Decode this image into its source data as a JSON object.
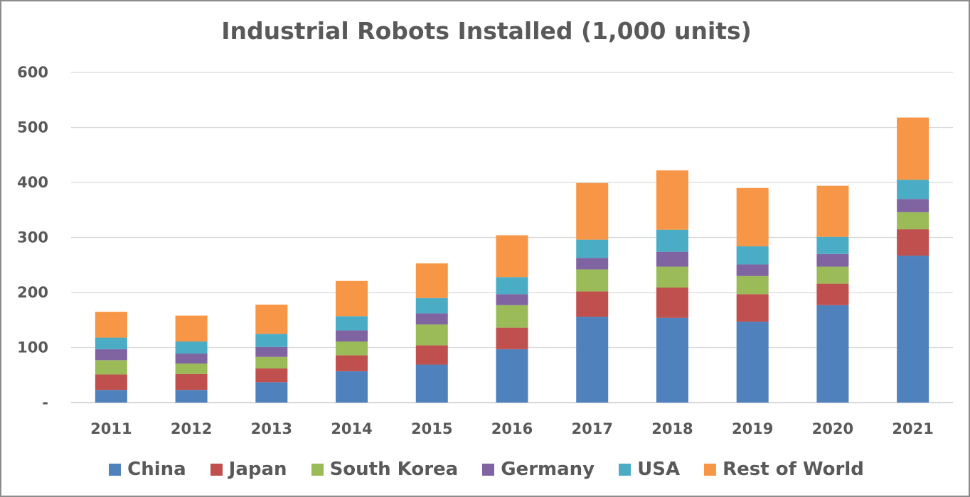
{
  "chart_data": {
    "type": "bar",
    "stacked": true,
    "title": "Industrial Robots Installed (1,000 units)",
    "xlabel": "",
    "ylabel": "",
    "ylim": [
      0,
      600
    ],
    "y_ticks": [
      0,
      100,
      200,
      300,
      400,
      500,
      600
    ],
    "y_tick_labels": [
      "-",
      "100",
      "200",
      "300",
      "400",
      "500",
      "600"
    ],
    "grid": true,
    "legend_position": "bottom",
    "categories": [
      "2011",
      "2012",
      "2013",
      "2014",
      "2015",
      "2016",
      "2017",
      "2018",
      "2019",
      "2020",
      "2021"
    ],
    "series": [
      {
        "name": "China",
        "color": "#4f81bd",
        "values": [
          23,
          23,
          37,
          57,
          69,
          97,
          156,
          154,
          147,
          177,
          267
        ]
      },
      {
        "name": "Japan",
        "color": "#c0504d",
        "values": [
          28,
          29,
          25,
          29,
          35,
          39,
          46,
          55,
          50,
          39,
          48
        ]
      },
      {
        "name": "South Korea",
        "color": "#9bbb59",
        "values": [
          26,
          19,
          21,
          25,
          38,
          41,
          40,
          38,
          33,
          31,
          31
        ]
      },
      {
        "name": "Germany",
        "color": "#8064a2",
        "values": [
          20,
          18,
          18,
          20,
          20,
          20,
          21,
          27,
          21,
          23,
          24
        ]
      },
      {
        "name": "USA",
        "color": "#4bacc6",
        "values": [
          21,
          22,
          24,
          26,
          28,
          31,
          33,
          40,
          33,
          31,
          35
        ]
      },
      {
        "name": "Rest of World",
        "color": "#f79646",
        "values": [
          47,
          47,
          53,
          64,
          63,
          76,
          103,
          108,
          106,
          93,
          113
        ]
      }
    ]
  }
}
